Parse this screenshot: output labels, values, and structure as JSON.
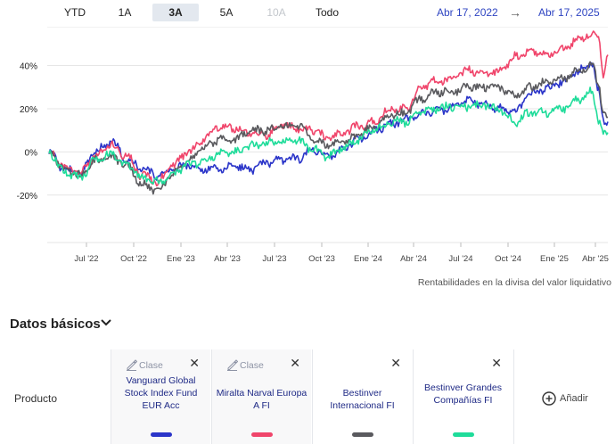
{
  "range_buttons": [
    "YTD",
    "1A",
    "3A",
    "5A",
    "10A",
    "Todo"
  ],
  "active_range": "3A",
  "disabled_range": "10A",
  "date_from": "Abr 17, 2022",
  "date_to": "Abr 17, 2025",
  "date_arrow": "→",
  "footnote": "Rentabilidades en la divisa del valor liquidativo",
  "section_title": "Datos básicos",
  "product_label": "Producto",
  "clase_label": "Clase",
  "add_label": "Añadir",
  "funds": [
    {
      "name": "Vanguard Global Stock Index Fund EUR Acc",
      "color": "#2b35c9",
      "has_clase": true
    },
    {
      "name": "Miralta Narval Europa A FI",
      "color": "#f0456b",
      "has_clase": true
    },
    {
      "name": "Bestinver Internacional FI",
      "color": "#5a5a5e",
      "has_clase": false
    },
    {
      "name": "Bestinver Grandes Compañías FI",
      "color": "#1fdc9a",
      "has_clase": false
    }
  ],
  "chart_data": {
    "type": "line",
    "x_ticks": [
      "Jul '22",
      "Oct '22",
      "Ene '23",
      "Abr '23",
      "Jul '23",
      "Oct '23",
      "Ene '24",
      "Abr '24",
      "Jul '24",
      "Oct '24",
      "Ene '25",
      "Abr '25"
    ],
    "y_ticks": [
      "40%",
      "20%",
      "0%",
      "-20%"
    ],
    "y_tick_values": [
      40,
      20,
      0,
      -20
    ],
    "ylim": [
      -42,
      58
    ],
    "x_range_months": [
      0,
      36
    ],
    "series": [
      {
        "name": "Vanguard Global Stock Index Fund EUR Acc",
        "color": "#2b35c9",
        "months": [
          0,
          1,
          2,
          3,
          4,
          5,
          6,
          7,
          8,
          9,
          10,
          11,
          12,
          13,
          14,
          15,
          16,
          17,
          18,
          19,
          20,
          21,
          22,
          23,
          24,
          25,
          26,
          27,
          28,
          29,
          30,
          31,
          32,
          33,
          34,
          35,
          35.4,
          35.7,
          36
        ],
        "values": [
          0,
          -8,
          -10,
          0,
          5,
          -3,
          -8,
          -11,
          -8,
          -6,
          -8,
          -8,
          -7,
          -8,
          -5,
          -4,
          -3,
          1,
          -2,
          2,
          6,
          10,
          13,
          15,
          18,
          19,
          21,
          24,
          22,
          20,
          18,
          27,
          29,
          32,
          37,
          41,
          28,
          15,
          14
        ]
      },
      {
        "name": "Miralta Narval Europa A FI",
        "color": "#f0456b",
        "months": [
          0,
          1,
          2,
          3,
          4,
          5,
          6,
          7,
          8,
          9,
          10,
          11,
          12,
          13,
          14,
          15,
          16,
          17,
          18,
          19,
          20,
          21,
          22,
          23,
          24,
          25,
          26,
          27,
          28,
          29,
          30,
          31,
          32,
          33,
          34,
          35,
          35.4,
          35.7,
          36
        ],
        "values": [
          0,
          -7,
          -10,
          -2,
          3,
          -2,
          -11,
          -14,
          -6,
          0,
          6,
          12,
          11,
          8,
          8,
          12,
          11,
          10,
          6,
          9,
          12,
          14,
          20,
          20,
          30,
          33,
          34,
          38,
          36,
          37,
          44,
          46,
          45,
          47,
          52,
          55,
          52,
          36,
          45
        ]
      },
      {
        "name": "Bestinver Internacional FI",
        "color": "#5a5a5e",
        "months": [
          0,
          1,
          2,
          3,
          4,
          5,
          6,
          7,
          8,
          9,
          10,
          11,
          12,
          13,
          14,
          15,
          16,
          17,
          18,
          19,
          20,
          21,
          22,
          23,
          24,
          25,
          26,
          27,
          28,
          29,
          30,
          31,
          32,
          33,
          34,
          35,
          35.4,
          35.7,
          36
        ],
        "values": [
          0,
          -8,
          -11,
          -4,
          -2,
          -6,
          -15,
          -18,
          -10,
          -4,
          2,
          6,
          6,
          10,
          10,
          12,
          12,
          6,
          3,
          5,
          8,
          12,
          17,
          18,
          25,
          28,
          28,
          30,
          30,
          30,
          26,
          30,
          32,
          34,
          37,
          40,
          32,
          18,
          16
        ]
      },
      {
        "name": "Bestinver Grandes Compañías FI",
        "color": "#1fdc9a",
        "months": [
          0,
          1,
          2,
          3,
          4,
          5,
          6,
          7,
          8,
          9,
          10,
          11,
          12,
          13,
          14,
          15,
          16,
          17,
          18,
          19,
          20,
          21,
          22,
          23,
          24,
          25,
          26,
          27,
          28,
          29,
          30,
          31,
          32,
          33,
          34,
          35,
          35.4,
          35.7,
          36
        ],
        "values": [
          0,
          -9,
          -12,
          -4,
          -1,
          -6,
          -12,
          -14,
          -10,
          -6,
          -4,
          -1,
          0,
          3,
          4,
          5,
          5,
          1,
          -2,
          2,
          6,
          10,
          14,
          14,
          19,
          20,
          21,
          21,
          22,
          20,
          14,
          18,
          18,
          20,
          24,
          28,
          15,
          8,
          9
        ]
      }
    ]
  }
}
